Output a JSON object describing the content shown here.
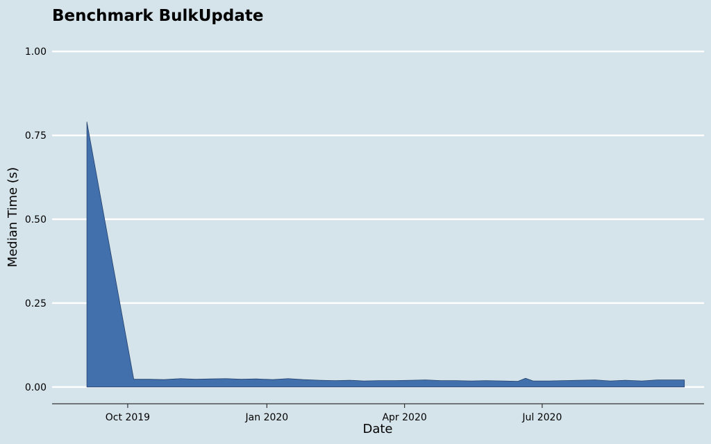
{
  "chart_data": {
    "type": "area",
    "title": "Benchmark BulkUpdate",
    "xlabel": "Date",
    "ylabel": "Median Time (s)",
    "xlim": [
      "2019-08-12",
      "2020-10-16"
    ],
    "ylim": [
      -0.05,
      1.05
    ],
    "x_ticks": [
      {
        "date": "2019-10-01",
        "label": "Oct 2019"
      },
      {
        "date": "2020-01-01",
        "label": "Jan 2020"
      },
      {
        "date": "2020-04-01",
        "label": "Apr 2020"
      },
      {
        "date": "2020-07-01",
        "label": "Jul 2020"
      }
    ],
    "y_ticks": [
      {
        "value": 0.0,
        "label": "0.00"
      },
      {
        "value": 0.25,
        "label": "0.25"
      },
      {
        "value": 0.5,
        "label": "0.50"
      },
      {
        "value": 0.75,
        "label": "0.75"
      },
      {
        "value": 1.0,
        "label": "1.00"
      }
    ],
    "grid": "horizontal",
    "colors": {
      "fill": "#4270ad",
      "edge": "#23406b",
      "grid": "#ffffff",
      "background": "#d5e3ea",
      "axis": "#333333"
    },
    "series": [
      {
        "x": [
          "2019-09-04",
          "2019-10-05",
          "2019-10-15",
          "2019-10-25",
          "2019-11-05",
          "2019-11-15",
          "2019-11-25",
          "2019-12-05",
          "2019-12-15",
          "2019-12-25",
          "2020-01-05",
          "2020-01-15",
          "2020-01-25",
          "2020-02-05",
          "2020-02-15",
          "2020-02-25",
          "2020-03-05",
          "2020-03-15",
          "2020-03-25",
          "2020-04-05",
          "2020-04-15",
          "2020-04-25",
          "2020-05-05",
          "2020-05-15",
          "2020-05-25",
          "2020-06-05",
          "2020-06-15",
          "2020-06-20",
          "2020-06-25",
          "2020-07-05",
          "2020-07-15",
          "2020-07-25",
          "2020-08-05",
          "2020-08-15",
          "2020-08-25",
          "2020-09-05",
          "2020-09-15",
          "2020-09-25",
          "2020-10-03"
        ],
        "y": [
          0.79,
          0.023,
          0.023,
          0.022,
          0.025,
          0.023,
          0.024,
          0.025,
          0.023,
          0.024,
          0.022,
          0.025,
          0.022,
          0.02,
          0.019,
          0.02,
          0.018,
          0.019,
          0.019,
          0.02,
          0.021,
          0.019,
          0.019,
          0.018,
          0.019,
          0.018,
          0.017,
          0.026,
          0.018,
          0.018,
          0.019,
          0.02,
          0.021,
          0.018,
          0.02,
          0.018,
          0.021,
          0.021,
          0.021
        ]
      }
    ]
  }
}
